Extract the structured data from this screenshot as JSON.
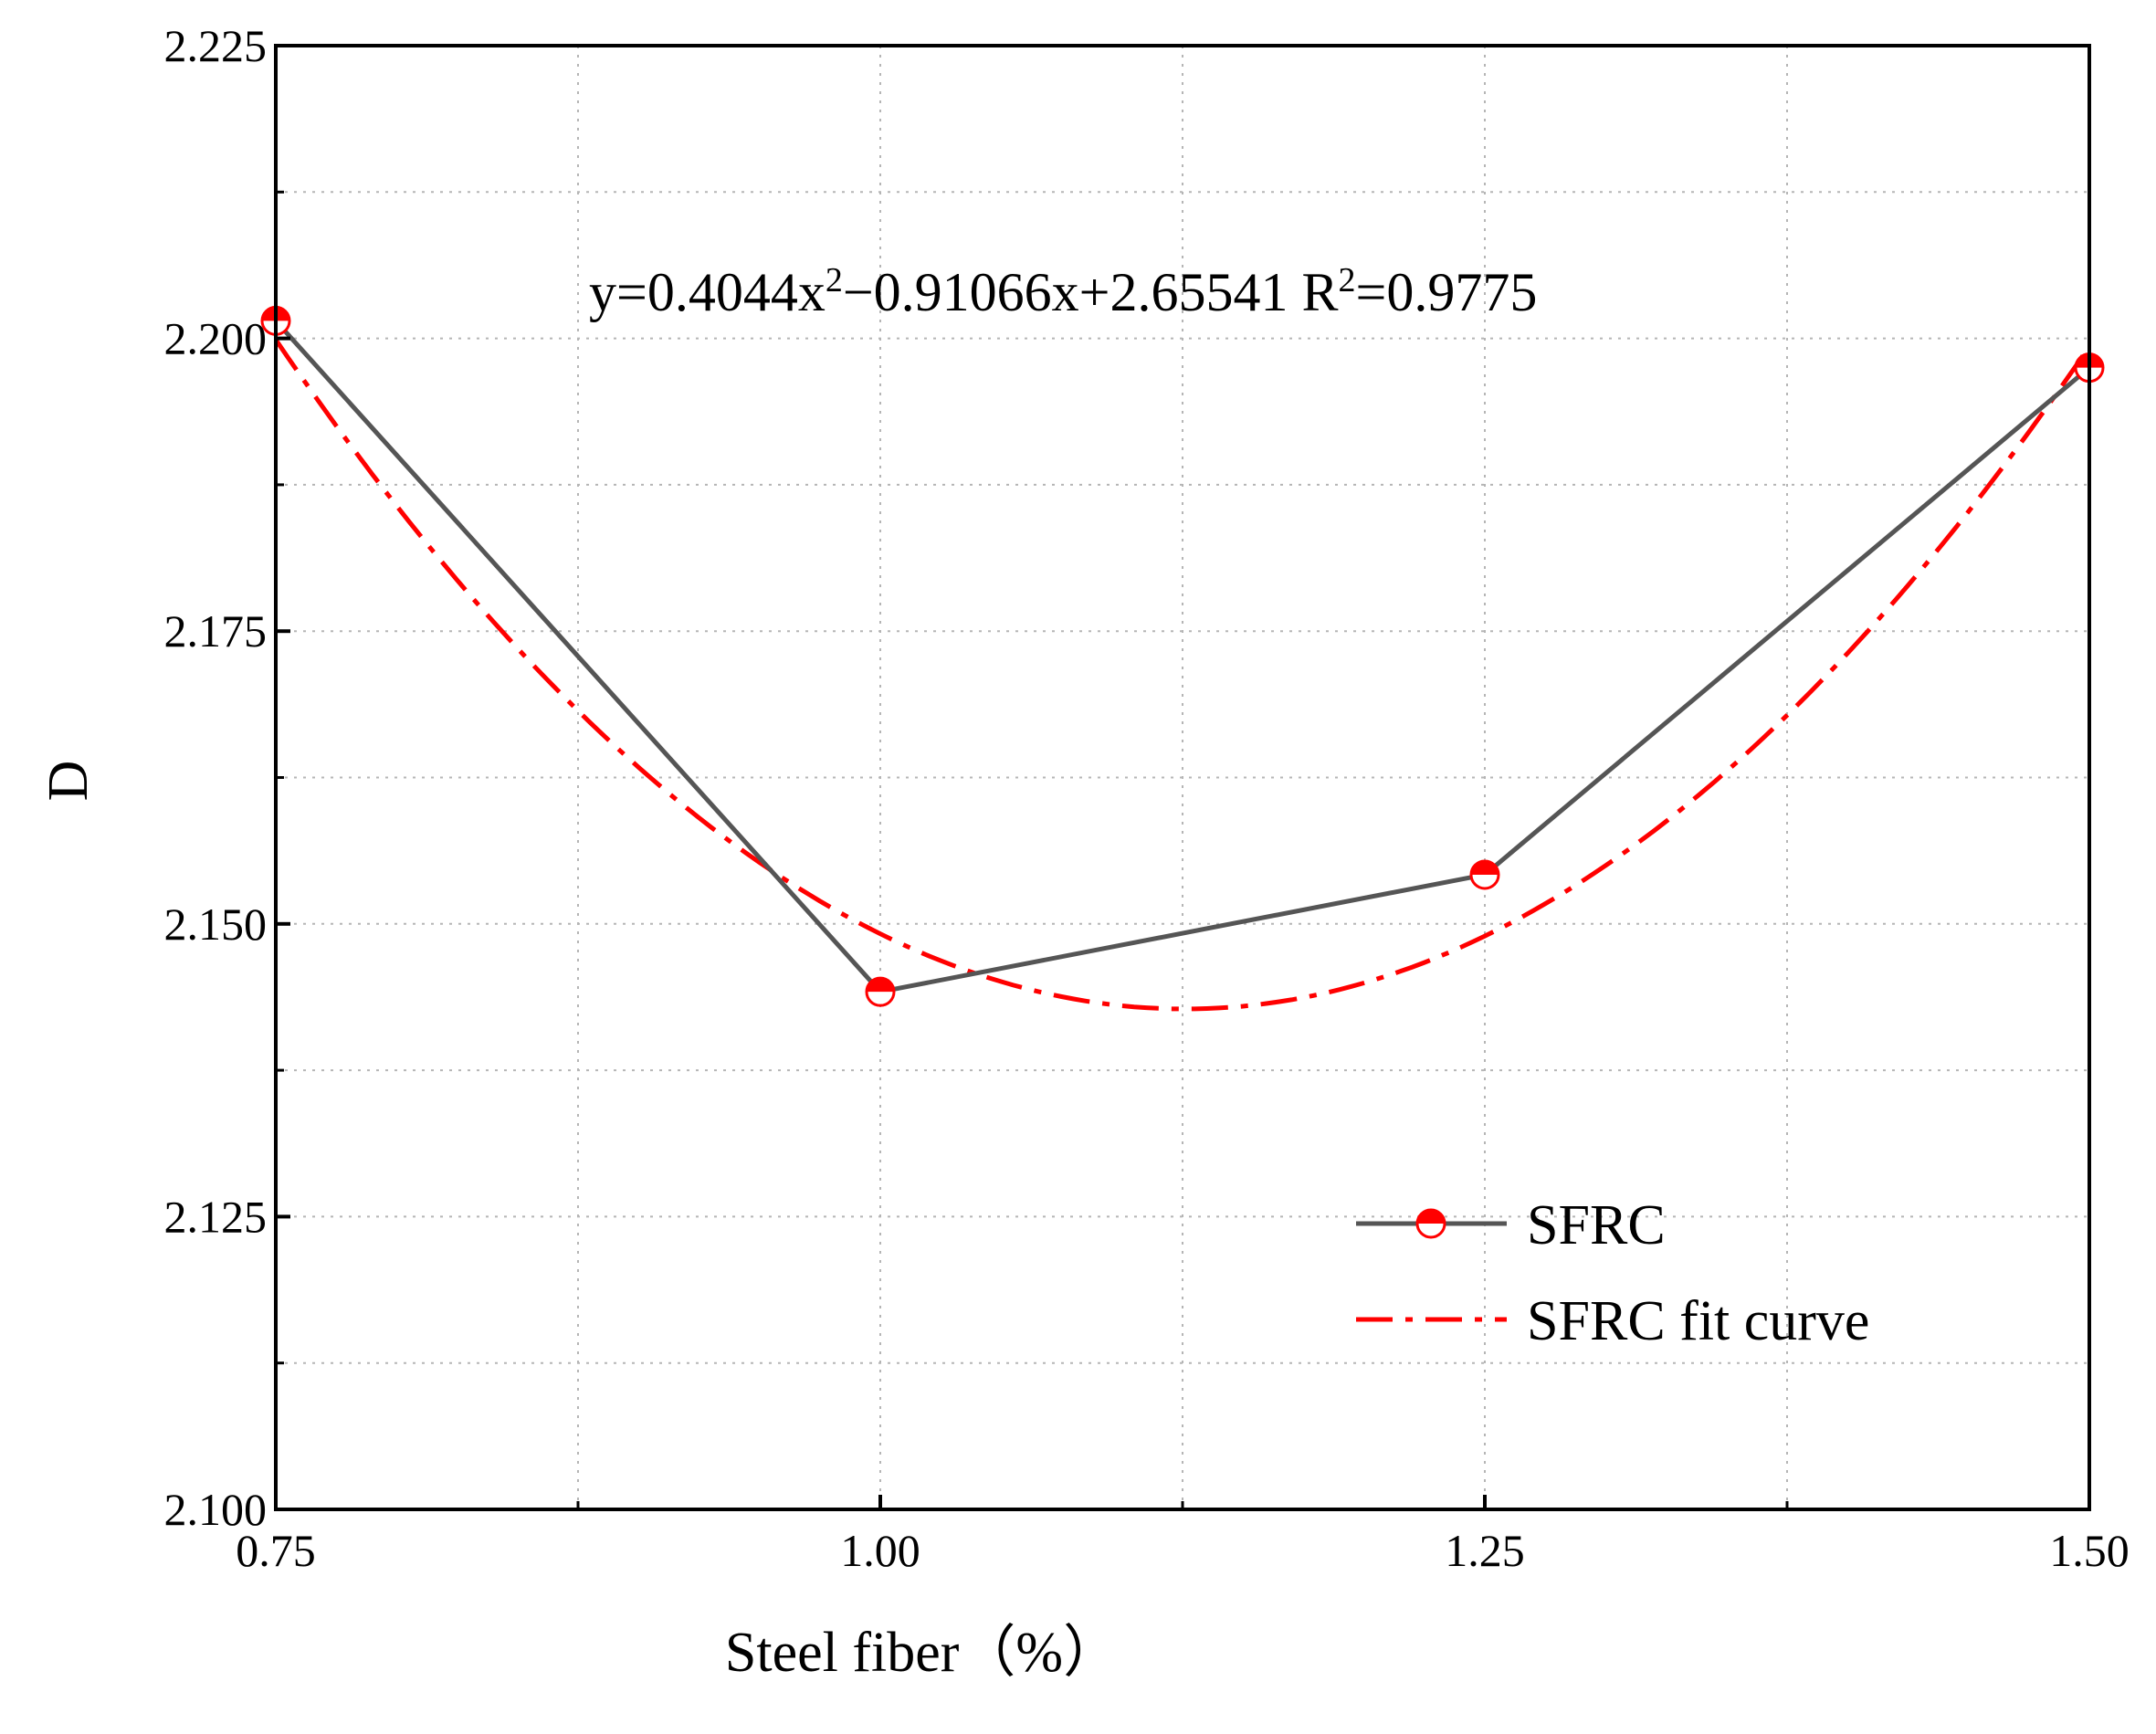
{
  "chart_data": {
    "type": "line",
    "xlabel": "Steel fiber（%）",
    "ylabel": "D",
    "xlim": [
      0.75,
      1.5
    ],
    "ylim": [
      2.1,
      2.225
    ],
    "x_ticks": [
      0.75,
      1.0,
      1.25,
      1.5
    ],
    "x_tick_labels": [
      "0.75",
      "1.00",
      "1.25",
      "1.50"
    ],
    "y_ticks": [
      2.1,
      2.125,
      2.15,
      2.175,
      2.2,
      2.225
    ],
    "y_tick_labels": [
      "2.100",
      "2.125",
      "2.150",
      "2.175",
      "2.200",
      "2.225"
    ],
    "grid": true,
    "legend_position": "bottom-right",
    "series": [
      {
        "name": "SFRC",
        "style": "solid-with-markers",
        "line_color": "#555555",
        "marker_color": "#ff0000",
        "x": [
          0.75,
          1.0,
          1.25,
          1.5
        ],
        "y": [
          2.2015,
          2.1442,
          2.1542,
          2.1975
        ]
      },
      {
        "name": "SFRC fit curve",
        "style": "dash-dot",
        "line_color": "#ff0000",
        "fit": {
          "a": 0.4044,
          "b": -0.91066,
          "c": 2.65541
        }
      }
    ],
    "annotation": {
      "equation_prefix": "y=0.4044x",
      "equation_exp": "2",
      "equation_mid": "−0.91066x+2.65541  R",
      "equation_r_exp": "2",
      "equation_suffix": "=0.9775"
    }
  }
}
